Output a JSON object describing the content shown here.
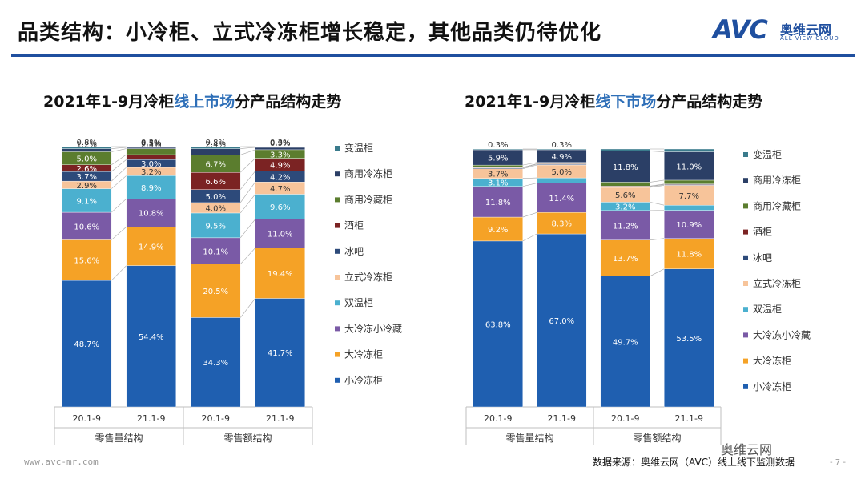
{
  "header": {
    "title": "品类结构：小冷柜、立式冷冻柜增长稳定，其他品类仍待优化",
    "logo_mark": "AVC",
    "logo_cn": "奥维云网",
    "logo_en": "ALL VIEW CLOUD"
  },
  "footer": {
    "url": "www.avc-mr.com",
    "source": "数据来源：奥维云网（AVC）线上线下监测数据",
    "wechat": "奥维云网",
    "page": "- 7 -"
  },
  "colors": {
    "小冷冻柜": "#1f5fb0",
    "大冷冻柜": "#f5a226",
    "大冷冻小冷藏": "#7a5aa6",
    "双温柜": "#4bb0cf",
    "立式冷冻柜": "#f7c49a",
    "冰吧": "#2d4a7a",
    "酒柜": "#7b2323",
    "商用冷藏柜": "#5b7d2e",
    "商用冷冻柜": "#2b3f66",
    "变温柜": "#3a7b8c"
  },
  "chart_data": [
    {
      "type": "bar",
      "stacked": true,
      "normalized": true,
      "title_prefix": "2021年1-9月冷柜",
      "title_highlight": "线上市场",
      "title_suffix": "分产品结构走势",
      "categories": [
        "20.1-9",
        "21.1-9",
        "20.1-9",
        "21.1-9"
      ],
      "groups": [
        {
          "label": "零售量结构",
          "categories": [
            "20.1-9",
            "21.1-9"
          ]
        },
        {
          "label": "零售额结构",
          "categories": [
            "20.1-9",
            "21.1-9"
          ]
        }
      ],
      "series": [
        {
          "name": "小冷冻柜",
          "values": [
            48.7,
            54.4,
            34.3,
            41.7
          ],
          "labels": [
            "48.7%",
            "54.4%",
            "34.3%",
            "41.7%"
          ]
        },
        {
          "name": "大冷冻柜",
          "values": [
            15.6,
            14.9,
            20.5,
            19.4
          ],
          "labels": [
            "15.6%",
            "14.9%",
            "20.5%",
            "19.4%"
          ]
        },
        {
          "name": "大冷冻小冷藏",
          "values": [
            10.6,
            10.8,
            10.1,
            11.0
          ],
          "labels": [
            "10.6%",
            "10.8%",
            "10.1%",
            "11.0%"
          ]
        },
        {
          "name": "双温柜",
          "values": [
            9.1,
            8.9,
            9.5,
            9.6
          ],
          "labels": [
            "9.1%",
            "8.9%",
            "9.5%",
            "9.6%"
          ]
        },
        {
          "name": "立式冷冻柜",
          "values": [
            2.9,
            3.2,
            4.0,
            4.7
          ],
          "labels": [
            "2.9%",
            "3.2%",
            "4.0%",
            "4.7%"
          ]
        },
        {
          "name": "冰吧",
          "values": [
            3.7,
            3.0,
            5.0,
            4.2
          ],
          "labels": [
            "3.7%",
            "3.0%",
            "5.0%",
            "4.2%"
          ]
        },
        {
          "name": "酒柜",
          "values": [
            2.6,
            1.9,
            6.6,
            4.9
          ],
          "labels": [
            "2.6%",
            "1.9%",
            "6.6%",
            "4.9%"
          ]
        },
        {
          "name": "商用冷藏柜",
          "values": [
            5.0,
            2.3,
            6.7,
            3.3
          ],
          "labels": [
            "5.0%",
            "2.3%",
            "6.7%",
            "3.3%"
          ]
        },
        {
          "name": "商用冷冻柜",
          "values": [
            1.2,
            0.5,
            2.4,
            0.9
          ],
          "labels": [
            "1.2%",
            "0.5%",
            "2.4%",
            "0.9%"
          ]
        },
        {
          "name": "变温柜",
          "values": [
            0.8,
            0.3,
            0.8,
            0.3
          ],
          "labels": [
            "0.8%",
            "0.3%",
            "0.8%",
            "0.3%"
          ]
        }
      ],
      "ylim": [
        0,
        100
      ],
      "legend_position": "right"
    },
    {
      "type": "bar",
      "stacked": true,
      "normalized": true,
      "title_prefix": "2021年1-9月冷柜",
      "title_highlight": "线下市场",
      "title_suffix": "分产品结构走势",
      "categories": [
        "20.1-9",
        "21.1-9",
        "20.1-9",
        "21.1-9"
      ],
      "groups": [
        {
          "label": "零售量结构",
          "categories": [
            "20.1-9",
            "21.1-9"
          ]
        },
        {
          "label": "零售额结构",
          "categories": [
            "20.1-9",
            "21.1-9"
          ]
        }
      ],
      "series": [
        {
          "name": "小冷冻柜",
          "values": [
            63.8,
            67.0,
            49.7,
            53.5
          ],
          "labels": [
            "63.8%",
            "67.0%",
            "49.7%",
            "53.5%"
          ]
        },
        {
          "name": "大冷冻柜",
          "values": [
            9.2,
            8.3,
            13.7,
            11.8
          ],
          "labels": [
            "9.2%",
            "8.3%",
            "13.7%",
            "11.8%"
          ]
        },
        {
          "name": "大冷冻小冷藏",
          "values": [
            11.8,
            11.4,
            11.2,
            10.9
          ],
          "labels": [
            "11.8%",
            "11.4%",
            "11.2%",
            "10.9%"
          ]
        },
        {
          "name": "双温柜",
          "values": [
            3.1,
            2.0,
            3.2,
            2.0
          ],
          "labels": [
            "3.1%",
            "2.0%",
            "3.2%",
            "2.0%"
          ]
        },
        {
          "name": "立式冷冻柜",
          "values": [
            3.7,
            5.0,
            5.6,
            7.7
          ],
          "labels": [
            "3.7%",
            "5.0%",
            "5.6%",
            "7.7%"
          ]
        },
        {
          "name": "冰吧",
          "values": [
            0.3,
            0.3,
            0.3,
            0.3
          ],
          "labels": [
            "",
            "",
            "",
            ""
          ]
        },
        {
          "name": "酒柜",
          "values": [
            0.2,
            0.2,
            0.2,
            0.2
          ],
          "labels": [
            "",
            "",
            "",
            ""
          ]
        },
        {
          "name": "商用冷藏柜",
          "values": [
            0.9,
            0.5,
            1.5,
            1.5
          ],
          "labels": [
            "",
            "",
            "1.5%",
            "1.5%"
          ]
        },
        {
          "name": "商用冷冻柜",
          "values": [
            5.9,
            4.9,
            11.8,
            11.0
          ],
          "labels": [
            "5.9%",
            "4.9%",
            "11.8%",
            "11.0%"
          ]
        },
        {
          "name": "变温柜",
          "values": [
            0.3,
            0.3,
            0.8,
            1.1
          ],
          "labels": [
            "0.3%",
            "0.3%",
            "",
            ""
          ]
        }
      ],
      "ylim": [
        0,
        100
      ],
      "legend_position": "right"
    }
  ]
}
